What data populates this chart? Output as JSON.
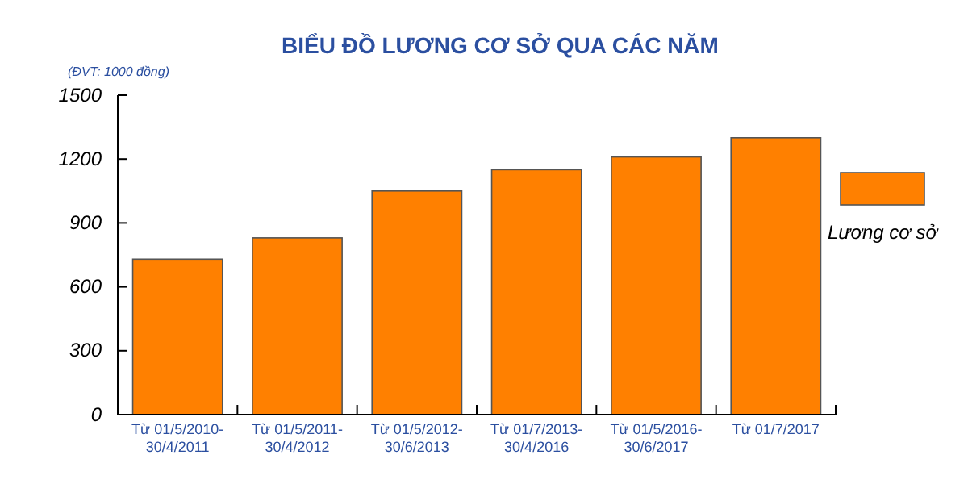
{
  "chart_data": {
    "type": "bar",
    "title": "BIỂU ĐỒ LƯƠNG CƠ SỞ QUA CÁC NĂM",
    "annotations": [
      "(ĐVT: 1000 đồng)"
    ],
    "categories": [
      "Từ 01/5/2010-30/4/2011",
      "Từ 01/5/2011-30/4/2012",
      "Từ 01/5/2012-30/6/2013",
      "Từ 01/7/2013-30/4/2016",
      "Từ 01/5/2016-30/6/2017",
      "Từ 01/7/2017"
    ],
    "series": [
      {
        "name": "Lương cơ sở",
        "color": "#ff8000",
        "values": [
          730,
          830,
          1050,
          1150,
          1210,
          1300
        ]
      }
    ],
    "ylim": [
      0,
      1500
    ],
    "yticks": [
      0,
      300,
      600,
      900,
      1200,
      1500
    ],
    "grid": false,
    "legend": "right"
  }
}
